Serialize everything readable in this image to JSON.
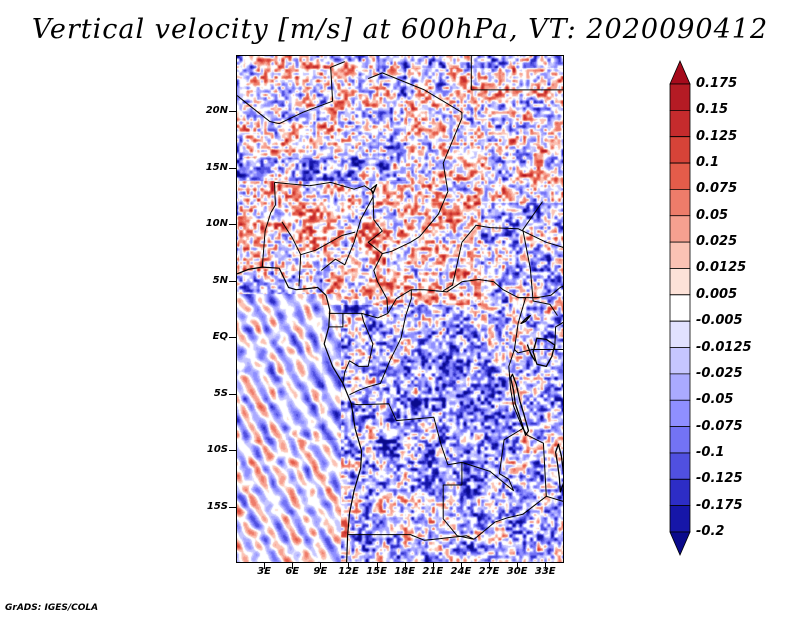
{
  "title": "Vertical velocity [m/s] at 600hPa, VT: 2020090412",
  "credit": "GrADS: IGES/COLA",
  "map": {
    "lon_range": [
      0,
      35
    ],
    "lat_range": [
      -20,
      25
    ],
    "y_ticks": [
      {
        "label": "20N",
        "lat": 20
      },
      {
        "label": "15N",
        "lat": 15
      },
      {
        "label": "10N",
        "lat": 10
      },
      {
        "label": "5N",
        "lat": 5
      },
      {
        "label": "EQ",
        "lat": 0
      },
      {
        "label": "5S",
        "lat": -5
      },
      {
        "label": "10S",
        "lat": -10
      },
      {
        "label": "15S",
        "lat": -15
      }
    ],
    "x_ticks": [
      {
        "label": "3E",
        "lon": 3
      },
      {
        "label": "6E",
        "lon": 6
      },
      {
        "label": "9E",
        "lon": 9
      },
      {
        "label": "12E",
        "lon": 12
      },
      {
        "label": "15E",
        "lon": 15
      },
      {
        "label": "18E",
        "lon": 18
      },
      {
        "label": "21E",
        "lon": 21
      },
      {
        "label": "24E",
        "lon": 24
      },
      {
        "label": "27E",
        "lon": 27
      },
      {
        "label": "30E",
        "lon": 30
      },
      {
        "label": "33E",
        "lon": 33
      }
    ],
    "coastline": [
      [
        0,
        5.7
      ],
      [
        1.2,
        6.1
      ],
      [
        2.7,
        6.3
      ],
      [
        4.5,
        6.2
      ],
      [
        5.5,
        4.5
      ],
      [
        6.3,
        4.3
      ],
      [
        7.5,
        4.4
      ],
      [
        8.6,
        4.5
      ],
      [
        9.5,
        3.8
      ],
      [
        9.9,
        2.5
      ],
      [
        9.8,
        1.0
      ],
      [
        9.3,
        -0.5
      ],
      [
        10.2,
        -2.5
      ],
      [
        11.3,
        -4.0
      ],
      [
        12.2,
        -5.8
      ],
      [
        12.6,
        -8.0
      ],
      [
        13.3,
        -10.0
      ],
      [
        13.2,
        -11.5
      ],
      [
        12.5,
        -13.5
      ],
      [
        12.0,
        -15.5
      ],
      [
        11.8,
        -17.5
      ],
      [
        11.7,
        -20
      ]
    ],
    "borders": [
      [
        [
          7.7,
          13.5
        ],
        [
          10,
          13.8
        ],
        [
          12.5,
          13.2
        ],
        [
          13.6,
          13.5
        ],
        [
          14.5,
          13.0
        ]
      ],
      [
        [
          14.5,
          13.0
        ],
        [
          14.6,
          10.5
        ],
        [
          15.5,
          9.5
        ],
        [
          14.0,
          8.5
        ],
        [
          15.5,
          7.5
        ],
        [
          16.5,
          7.7
        ],
        [
          18.5,
          8.5
        ],
        [
          19.5,
          9.0
        ],
        [
          21.5,
          11.0
        ],
        [
          22.5,
          13.0
        ],
        [
          22.0,
          15.5
        ],
        [
          24.0,
          19.5
        ],
        [
          24.0,
          20.0
        ],
        [
          20.0,
          22.0
        ],
        [
          15.5,
          23.5
        ],
        [
          14.0,
          23.0
        ]
      ],
      [
        [
          11.5,
          24.5
        ],
        [
          10.0,
          24.0
        ],
        [
          10.2,
          21.0
        ],
        [
          7.0,
          20.0
        ],
        [
          4.5,
          19.0
        ],
        [
          3.5,
          19.2
        ],
        [
          1.5,
          20.5
        ],
        [
          0,
          21.5
        ]
      ],
      [
        [
          4.0,
          13.8
        ],
        [
          4.1,
          11.8
        ],
        [
          3.6,
          11.1
        ],
        [
          3.0,
          9.5
        ],
        [
          2.7,
          6.3
        ]
      ],
      [
        [
          4.0,
          13.8
        ],
        [
          7.7,
          13.5
        ]
      ],
      [
        [
          9.0,
          6.0
        ],
        [
          10.5,
          7.0
        ],
        [
          11.5,
          6.5
        ],
        [
          12.5,
          8.5
        ],
        [
          13.2,
          10.5
        ],
        [
          14.5,
          12.5
        ]
      ],
      [
        [
          9.8,
          2.2
        ],
        [
          11.3,
          2.2
        ],
        [
          13.3,
          2.2
        ],
        [
          15.0,
          1.8
        ],
        [
          16.1,
          2.2
        ]
      ],
      [
        [
          11.3,
          2.2
        ],
        [
          11.3,
          1.0
        ],
        [
          9.8,
          1.0
        ]
      ],
      [
        [
          16.1,
          2.2
        ],
        [
          16.0,
          3.5
        ],
        [
          15.0,
          5.0
        ],
        [
          14.6,
          6.0
        ],
        [
          15.5,
          7.5
        ]
      ],
      [
        [
          16.1,
          2.2
        ],
        [
          17.0,
          3.5
        ],
        [
          18.6,
          4.3
        ],
        [
          20.0,
          4.3
        ],
        [
          22.4,
          4.1
        ],
        [
          24.0,
          5.0
        ],
        [
          25.8,
          5.2
        ],
        [
          27.4,
          5.0
        ],
        [
          28.4,
          4.3
        ],
        [
          30.0,
          3.6
        ],
        [
          30.8,
          3.6
        ]
      ],
      [
        [
          24.0,
          8.5
        ],
        [
          25.5,
          10.0
        ],
        [
          27.0,
          9.8
        ],
        [
          30.0,
          9.7
        ],
        [
          33.0,
          8.5
        ],
        [
          35,
          8.0
        ]
      ],
      [
        [
          22.0,
          4.2
        ],
        [
          23.0,
          4.7
        ],
        [
          24.0,
          8.5
        ]
      ],
      [
        [
          30.8,
          3.6
        ],
        [
          30.0,
          1.3
        ],
        [
          29.6,
          -1.0
        ],
        [
          29.0,
          -2.5
        ],
        [
          29.2,
          -4.5
        ],
        [
          29.5,
          -6.0
        ],
        [
          30.5,
          -8.0
        ],
        [
          28.5,
          -9.0
        ],
        [
          28.0,
          -12.0
        ],
        [
          29.0,
          -12.5
        ],
        [
          29.5,
          -13.5
        ],
        [
          27.0,
          -11.8
        ],
        [
          24.0,
          -11.0
        ],
        [
          22.5,
          -11.2
        ],
        [
          21.8,
          -9.5
        ],
        [
          21.0,
          -7.0
        ],
        [
          17.0,
          -7.3
        ],
        [
          16.2,
          -5.8
        ],
        [
          13.0,
          -5.9
        ],
        [
          12.2,
          -5.8
        ]
      ],
      [
        [
          12.0,
          -5.0
        ],
        [
          13.0,
          -4.6
        ],
        [
          14.0,
          -4.3
        ],
        [
          15.3,
          -4.0
        ],
        [
          16.3,
          -2.0
        ],
        [
          17.5,
          0
        ],
        [
          18.0,
          2.0
        ],
        [
          18.6,
          3.5
        ],
        [
          18.6,
          4.3
        ]
      ],
      [
        [
          11.3,
          -4.0
        ],
        [
          11.5,
          -3.0
        ],
        [
          12.0,
          -2.0
        ],
        [
          13.0,
          -2.5
        ],
        [
          14.0,
          -2.5
        ],
        [
          14.5,
          -0.5
        ],
        [
          13.5,
          1.5
        ],
        [
          13.3,
          2.2
        ]
      ],
      [
        [
          35,
          -1.0
        ],
        [
          33.9,
          -1.0
        ],
        [
          31.5,
          -1.0
        ],
        [
          30.0,
          -1.3
        ],
        [
          29.6,
          -1.0
        ]
      ],
      [
        [
          24.0,
          -11.0
        ],
        [
          24.0,
          -13.0
        ],
        [
          22.0,
          -13.0
        ],
        [
          22.0,
          -16.0
        ],
        [
          23.5,
          -17.5
        ],
        [
          25.3,
          -17.8
        ]
      ],
      [
        [
          11.8,
          -17.4
        ],
        [
          14.0,
          -17.4
        ],
        [
          18.5,
          -17.4
        ],
        [
          20.0,
          -17.9
        ],
        [
          24.5,
          -17.5
        ],
        [
          25.3,
          -17.8
        ]
      ],
      [
        [
          25.3,
          -17.8
        ],
        [
          27.5,
          -16.3
        ],
        [
          28.9,
          -15.9
        ],
        [
          30.5,
          -15.6
        ],
        [
          33.0,
          -14.0
        ],
        [
          32.7,
          -9.3
        ],
        [
          31.0,
          -8.6
        ],
        [
          30.5,
          -8.0
        ]
      ],
      [
        [
          33.0,
          -14.0
        ],
        [
          35,
          -14.5
        ]
      ],
      [
        [
          30.0,
          3.6
        ],
        [
          32.0,
          3.6
        ],
        [
          33.5,
          3.8
        ],
        [
          34.5,
          4.5
        ],
        [
          35,
          4.7
        ]
      ],
      [
        [
          33.9,
          -1.0
        ],
        [
          34.0,
          1.0
        ],
        [
          35,
          1.5
        ]
      ],
      [
        [
          25.0,
          22.0
        ],
        [
          25.0,
          25.0
        ]
      ],
      [
        [
          25.0,
          22.0
        ],
        [
          31.5,
          22.0
        ],
        [
          35,
          22.0
        ]
      ]
    ],
    "lakes": [
      [
        [
          32.0,
          0.0
        ],
        [
          33.0,
          -0.1
        ],
        [
          33.9,
          -0.6
        ],
        [
          33.6,
          -1.6
        ],
        [
          33.0,
          -2.5
        ],
        [
          32.0,
          -2.3
        ],
        [
          31.6,
          -1.2
        ],
        [
          32.0,
          0.0
        ]
      ],
      [
        [
          29.2,
          -3.5
        ],
        [
          29.5,
          -4.6
        ],
        [
          29.7,
          -5.8
        ],
        [
          30.1,
          -6.8
        ],
        [
          30.5,
          -7.8
        ],
        [
          30.8,
          -8.6
        ],
        [
          31.1,
          -8.2
        ],
        [
          30.6,
          -6.7
        ],
        [
          30.2,
          -5.6
        ],
        [
          29.8,
          -4.1
        ],
        [
          29.4,
          -3.2
        ],
        [
          29.2,
          -3.5
        ]
      ],
      [
        [
          34.3,
          -9.4
        ],
        [
          34.6,
          -10.4
        ],
        [
          34.8,
          -11.6
        ],
        [
          35,
          -12.5
        ],
        [
          34.5,
          -13.6
        ],
        [
          34.4,
          -12.4
        ],
        [
          34.2,
          -11.1
        ],
        [
          34.0,
          -10.1
        ],
        [
          34.3,
          -9.4
        ]
      ],
      [
        [
          31.0,
          -0.6
        ],
        [
          31.4,
          -1.5
        ],
        [
          31.8,
          -2.0
        ],
        [
          31.3,
          -1.3
        ],
        [
          31.0,
          -0.6
        ]
      ],
      [
        [
          30.3,
          1.3
        ],
        [
          30.9,
          1.8
        ],
        [
          31.3,
          2.0
        ],
        [
          30.8,
          1.5
        ],
        [
          30.3,
          1.3
        ]
      ],
      [
        [
          14.3,
          13.2
        ],
        [
          14.9,
          13.6
        ],
        [
          14.5,
          12.8
        ],
        [
          14.3,
          13.2
        ]
      ]
    ],
    "rivers": [
      [
        [
          6.6,
          4.6
        ],
        [
          6.7,
          5.9
        ],
        [
          6.8,
          7.4
        ],
        [
          5.9,
          8.9
        ],
        [
          4.8,
          10.3
        ]
      ],
      [
        [
          6.8,
          7.4
        ],
        [
          8.4,
          7.8
        ],
        [
          9.7,
          8.4
        ],
        [
          11.2,
          9.1
        ],
        [
          12.6,
          9.4
        ]
      ],
      [
        [
          34.2,
          2.0
        ],
        [
          33.4,
          3.0
        ],
        [
          31.6,
          3.3
        ],
        [
          31.3,
          6.2
        ],
        [
          30.5,
          9.6
        ],
        [
          32.6,
          12.1
        ]
      ]
    ]
  },
  "colorbar": {
    "labels": [
      "0.175",
      "0.15",
      "0.125",
      "0.1",
      "0.075",
      "0.05",
      "0.025",
      "0.0125",
      "0.005",
      "-0.005",
      "-0.0125",
      "-0.025",
      "-0.05",
      "-0.075",
      "-0.1",
      "-0.125",
      "-0.175",
      "-0.2"
    ],
    "colors": [
      "#a60b1c",
      "#b51b24",
      "#c52b2d",
      "#d64338",
      "#e45c4a",
      "#ee7c6a",
      "#f6a090",
      "#fbc2b4",
      "#fde2d8",
      "#ffffff",
      "#e1e1ff",
      "#c6c6ff",
      "#aaaaff",
      "#8f8fff",
      "#7373f5",
      "#5050e0",
      "#2d2dc6",
      "#1616a8",
      "#0a0a8c"
    ]
  }
}
